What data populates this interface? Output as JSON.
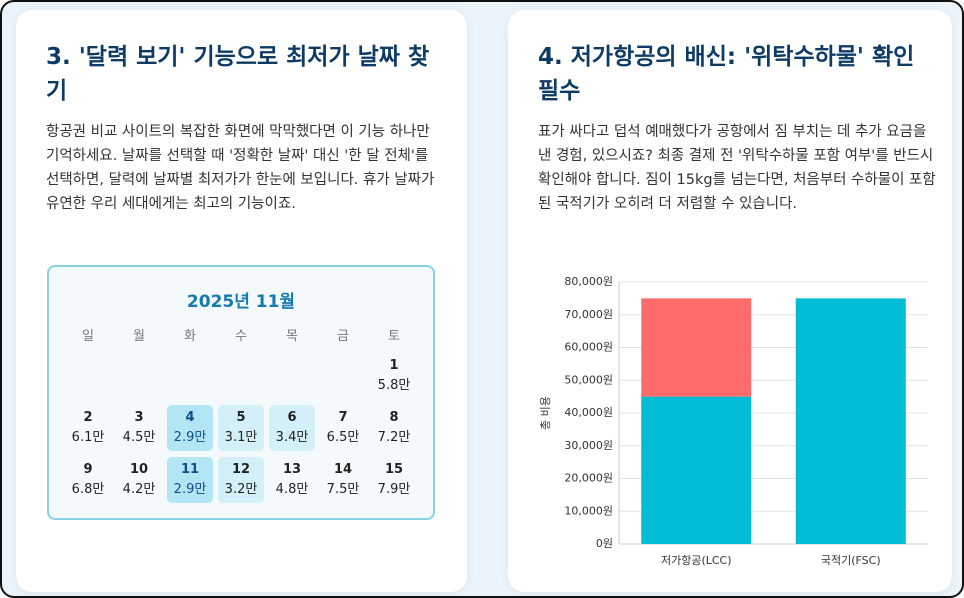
{
  "cards": [
    {
      "title": "3. '달력 보기' 기능으로 최저가 날짜 찾기",
      "body": "항공권 비교 사이트의 복잡한 화면에 막막했다면 이 기능 하나만 기억하세요. 날짜를 선택할 때 '정확한 날짜' 대신 '한 달 전체'를 선택하면, 달력에 날짜별 최저가가 한눈에 보입니다. 휴가 날짜가 유연한 우리 세대에게는 최고의 기능이죠.",
      "calendar": {
        "title": "2025년 11월",
        "weekdays": [
          "일",
          "월",
          "화",
          "수",
          "목",
          "금",
          "토"
        ],
        "weeks": [
          [
            null,
            null,
            null,
            null,
            null,
            null,
            {
              "day": 1,
              "price": "5.8만"
            }
          ],
          [
            {
              "day": 2,
              "price": "6.1만"
            },
            {
              "day": 3,
              "price": "4.5만"
            },
            {
              "day": 4,
              "price": "2.9만",
              "bg": "#b3e5f5",
              "color": "#0b4f8a"
            },
            {
              "day": 5,
              "price": "3.1만",
              "bg": "#d3f0f8"
            },
            {
              "day": 6,
              "price": "3.4만",
              "bg": "#d3f0f8"
            },
            {
              "day": 7,
              "price": "6.5만"
            },
            {
              "day": 8,
              "price": "7.2만"
            }
          ],
          [
            {
              "day": 9,
              "price": "6.8만"
            },
            {
              "day": 10,
              "price": "4.2만"
            },
            {
              "day": 11,
              "price": "2.9만",
              "bg": "#b3e5f5",
              "color": "#0b4f8a"
            },
            {
              "day": 12,
              "price": "3.2만",
              "bg": "#d3f0f8"
            },
            {
              "day": 13,
              "price": "4.8만"
            },
            {
              "day": 14,
              "price": "7.5만"
            },
            {
              "day": 15,
              "price": "7.9만"
            }
          ]
        ]
      }
    },
    {
      "title": "4. 저가항공의 배신: '위탁수하물' 확인 필수",
      "body": "표가 싸다고 덥석 예매했다가 공항에서 짐 부치는 데 추가 요금을 낸 경험, 있으시죠? 최종 결제 전 '위탁수하물 포함 여부'를 반드시 확인해야 합니다. 짐이 15kg를 넘는다면, 처음부터 수하물이 포함된 국적기가 오히려 더 저렴할 수 있습니다."
    }
  ],
  "chart_data": {
    "type": "stacked_bar",
    "y_label": "총 비용",
    "categories": [
      "저가항공(LCC)",
      "국적기(FSC)"
    ],
    "series": [
      {
        "color": "#00bcd4",
        "values": [
          45000,
          75000
        ]
      },
      {
        "color": "#ff6b6b",
        "values": [
          30000,
          null
        ]
      }
    ],
    "ylim": [
      0,
      80000
    ],
    "yticks": [
      {
        "value": 0,
        "label": "0원"
      },
      {
        "value": 10000,
        "label": "10,000원"
      },
      {
        "value": 20000,
        "label": "20,000원"
      },
      {
        "value": 30000,
        "label": "30,000원"
      },
      {
        "value": 40000,
        "label": "40,000원"
      },
      {
        "value": 50000,
        "label": "50,000원"
      },
      {
        "value": 60000,
        "label": "60,000원"
      },
      {
        "value": 70000,
        "label": "70,000원"
      },
      {
        "value": 80000,
        "label": "80,000원"
      }
    ],
    "grid": true
  }
}
